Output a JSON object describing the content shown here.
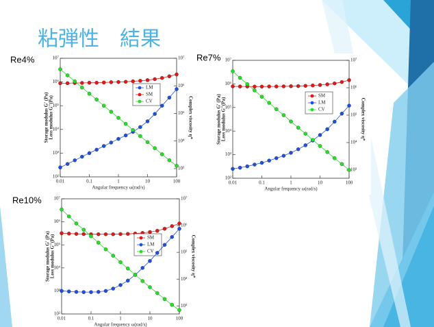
{
  "title": "粘弾性　結果",
  "chart_data": [
    {
      "type": "line",
      "title": "Re4%",
      "xlabel": "Angular frequency ω(rad/s)",
      "ylabel": [
        "Storage modulus G' (Pa)",
        "Loss modulus G''(Pa)"
      ],
      "y2label": "Complex viscosity η*",
      "log_x": true,
      "log_y": true,
      "legend": "right",
      "x": [
        0.01,
        0.0178,
        0.0316,
        0.0562,
        0.1,
        0.178,
        0.316,
        0.562,
        1,
        1.78,
        3.16,
        5.62,
        10,
        17.8,
        31.6,
        56.2,
        100
      ],
      "xlim": [
        0.01,
        100
      ],
      "xticks": [
        0.01,
        0.1,
        1,
        10,
        100
      ],
      "ylim": [
        100,
        10000000
      ],
      "yticks": [
        {
          "value": 100,
          "label": "10²"
        },
        {
          "value": 1000,
          "label": "10³"
        },
        {
          "value": 10000,
          "label": "10⁴"
        },
        {
          "value": 100000,
          "label": "10⁵"
        },
        {
          "value": 1000000,
          "label": "10⁶"
        },
        {
          "value": 10000000,
          "label": "10⁷"
        }
      ],
      "y2lim": [
        500,
        10000000
      ],
      "y2ticks": [
        {
          "value": 1000,
          "label": "10³"
        },
        {
          "value": 10000,
          "label": "10⁴"
        },
        {
          "value": 100000,
          "label": "10⁵"
        },
        {
          "value": 1000000,
          "label": "10⁶"
        },
        {
          "value": 10000000,
          "label": "10⁷"
        }
      ],
      "series": [
        {
          "name": "LM",
          "color": "#1f4fe0",
          "values": [
            250,
            350,
            500,
            710,
            1000,
            1400,
            2000,
            2800,
            4000,
            5600,
            7900,
            12600,
            22000,
            45000,
            100000,
            220000,
            500000
          ]
        },
        {
          "name": "SM",
          "color": "#e01818",
          "values": [
            890000,
            890000,
            910000,
            910000,
            930000,
            930000,
            950000,
            980000,
            1000000,
            1020000,
            1070000,
            1120000,
            1200000,
            1320000,
            1480000,
            1740000,
            2090000
          ]
        },
        {
          "name": "CV",
          "color": "#22e022",
          "axis": "y2",
          "values": [
            4000000,
            2400000,
            1450000,
            870000,
            520000,
            320000,
            190000,
            115000,
            69000,
            42000,
            25000,
            15000,
            9100,
            5500,
            3300,
            2000,
            1260
          ]
        }
      ]
    },
    {
      "type": "line",
      "title": "Re7%",
      "xlabel": "Angular frequency ω(rad/s)",
      "ylabel": [
        "Storage modulus G' (Pa)",
        "Loss modulus G''(Pa)"
      ],
      "y2label": "Complex viscosity η*",
      "log_x": true,
      "log_y": true,
      "legend": "right",
      "x": [
        0.01,
        0.0178,
        0.0316,
        0.0562,
        0.1,
        0.178,
        0.316,
        0.562,
        1,
        1.78,
        3.16,
        5.62,
        10,
        17.8,
        31.6,
        56.2,
        100
      ],
      "xlim": [
        0.01,
        100
      ],
      "xticks": [
        0.01,
        0.1,
        1,
        10,
        100
      ],
      "ylim": [
        100,
        10000000
      ],
      "yticks": [
        {
          "value": 100,
          "label": "10²"
        },
        {
          "value": 1000,
          "label": "10³"
        },
        {
          "value": 10000,
          "label": "10⁴"
        },
        {
          "value": 100000,
          "label": "10⁵"
        },
        {
          "value": 1000000,
          "label": "10⁶"
        },
        {
          "value": 10000000,
          "label": "10⁷"
        }
      ],
      "y2lim": [
        500,
        10000000
      ],
      "y2ticks": [
        {
          "value": 1000,
          "label": "10³"
        },
        {
          "value": 10000,
          "label": "10⁴"
        },
        {
          "value": 100000,
          "label": "10⁵"
        },
        {
          "value": 1000000,
          "label": "10⁶"
        },
        {
          "value": 10000000,
          "label": "10⁷"
        }
      ],
      "series": [
        {
          "name": "SM",
          "color": "#e01818",
          "values": [
            790000,
            780000,
            780000,
            770000,
            770000,
            780000,
            780000,
            790000,
            800000,
            810000,
            830000,
            860000,
            900000,
            960000,
            1050000,
            1200000,
            1450000
          ]
        },
        {
          "name": "LM",
          "color": "#1f4fe0",
          "values": [
            250,
            280,
            320,
            380,
            450,
            560,
            710,
            900,
            1200,
            1700,
            2500,
            4000,
            6800,
            12000,
            25000,
            55000,
            120000
          ]
        },
        {
          "name": "CV",
          "color": "#22e022",
          "axis": "y2",
          "values": [
            4000000,
            2300000,
            1350000,
            800000,
            470000,
            280000,
            165000,
            100000,
            59000,
            35000,
            21000,
            12500,
            7500,
            4500,
            2700,
            1650,
            1000
          ]
        }
      ]
    },
    {
      "type": "line",
      "title": "Re10%",
      "xlabel": "Angular frequency ω(rad/s)",
      "ylabel": [
        "Storage modulus G' (Pa)",
        "Loss modulus G''(Pa)"
      ],
      "y2label": "Complex viscosity η*",
      "log_x": true,
      "log_y": true,
      "legend": "right",
      "x": [
        0.01,
        0.0178,
        0.0316,
        0.0562,
        0.1,
        0.178,
        0.316,
        0.562,
        1,
        1.78,
        3.16,
        5.62,
        10,
        17.8,
        31.6,
        56.2,
        100
      ],
      "xlim": [
        0.01,
        100
      ],
      "xticks": [
        0.01,
        0.1,
        1,
        10,
        100
      ],
      "ylim": [
        100,
        10000000
      ],
      "yticks": [
        {
          "value": 100,
          "label": "10²"
        },
        {
          "value": 1000,
          "label": "10³"
        },
        {
          "value": 10000,
          "label": "10⁴"
        },
        {
          "value": 100000,
          "label": "10⁵"
        },
        {
          "value": 1000000,
          "label": "10⁶"
        },
        {
          "value": 10000000,
          "label": "10⁷"
        }
      ],
      "y2lim": [
        500,
        10000000
      ],
      "y2ticks": [
        {
          "value": 1000,
          "label": "10³"
        },
        {
          "value": 10000,
          "label": "10⁴"
        },
        {
          "value": 100000,
          "label": "10⁵"
        },
        {
          "value": 1000000,
          "label": "10⁶"
        },
        {
          "value": 10000000,
          "label": "10⁷"
        }
      ],
      "series": [
        {
          "name": "SM",
          "color": "#e01818",
          "values": [
            320000,
            310000,
            300000,
            295000,
            290000,
            290000,
            290000,
            290000,
            295000,
            300000,
            310000,
            330000,
            360000,
            410000,
            500000,
            650000,
            850000
          ]
        },
        {
          "name": "LM",
          "color": "#1f4fe0",
          "values": [
            1000,
            950,
            910,
            890,
            890,
            910,
            1000,
            1260,
            1800,
            2800,
            5000,
            10000,
            20000,
            45000,
            100000,
            220000,
            500000
          ]
        },
        {
          "name": "CV",
          "color": "#22e022",
          "axis": "y2",
          "values": [
            4000000,
            2200000,
            1200000,
            700000,
            400000,
            230000,
            130000,
            75000,
            43000,
            25000,
            14500,
            8500,
            5000,
            3000,
            1800,
            1100,
            700
          ]
        }
      ]
    }
  ]
}
